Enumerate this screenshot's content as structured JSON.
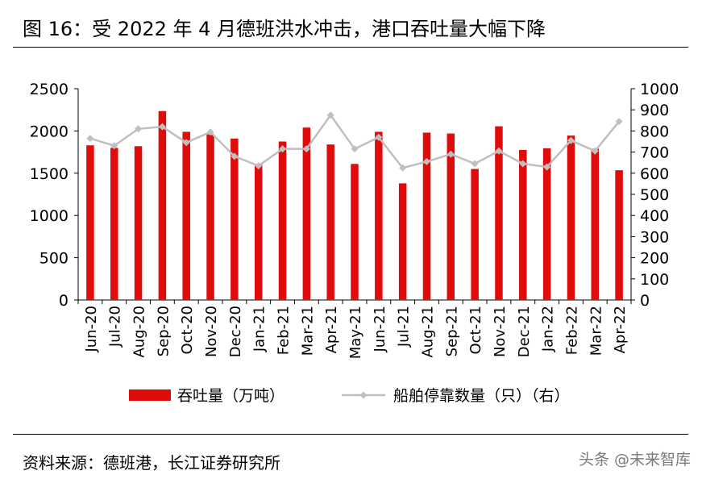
{
  "title": "图 16：受 2022 年 4 月德班洪水冲击，港口吞吐量大幅下降",
  "source": "资料来源：德班港，长江证券研究所",
  "watermark": "头条 @未来智库",
  "colors": {
    "bar": "#e00b0b",
    "line": "#bfbfbf",
    "marker": "#c0c0c0"
  },
  "chart_data": {
    "type": "bar",
    "categories": [
      "Jun-20",
      "Jul-20",
      "Aug-20",
      "Sep-20",
      "Oct-20",
      "Nov-20",
      "Dec-20",
      "Jan-21",
      "Feb-21",
      "Mar-21",
      "Apr-21",
      "May-21",
      "Jun-21",
      "Jul-21",
      "Aug-21",
      "Sep-21",
      "Oct-21",
      "Nov-21",
      "Dec-21",
      "Jan-22",
      "Feb-22",
      "Mar-22",
      "Apr-22"
    ],
    "series": [
      {
        "name": "吞吐量（万吨）",
        "type": "bar",
        "axis": "left",
        "values": [
          1830,
          1800,
          1820,
          2235,
          1990,
          1960,
          1910,
          1600,
          1875,
          2040,
          1840,
          1610,
          1990,
          1380,
          1980,
          1970,
          1550,
          2055,
          1775,
          1795,
          1945,
          1790,
          1535
        ]
      },
      {
        "name": "船舶停靠数量（只）（右）",
        "type": "line",
        "axis": "right",
        "values": [
          765,
          730,
          810,
          820,
          745,
          795,
          680,
          635,
          715,
          715,
          875,
          715,
          770,
          625,
          655,
          690,
          645,
          705,
          645,
          630,
          755,
          705,
          845
        ]
      }
    ],
    "y_left": {
      "min": 0,
      "max": 2500,
      "ticks": [
        0,
        500,
        1000,
        1500,
        2000,
        2500
      ]
    },
    "y_right": {
      "min": 0,
      "max": 1000,
      "ticks": [
        0,
        100,
        200,
        300,
        400,
        500,
        600,
        700,
        800,
        900,
        1000
      ]
    },
    "legend": {
      "position": "bottom",
      "items": [
        "吞吐量（万吨）",
        "船舶停靠数量（只）（右）"
      ]
    },
    "grid": false
  }
}
